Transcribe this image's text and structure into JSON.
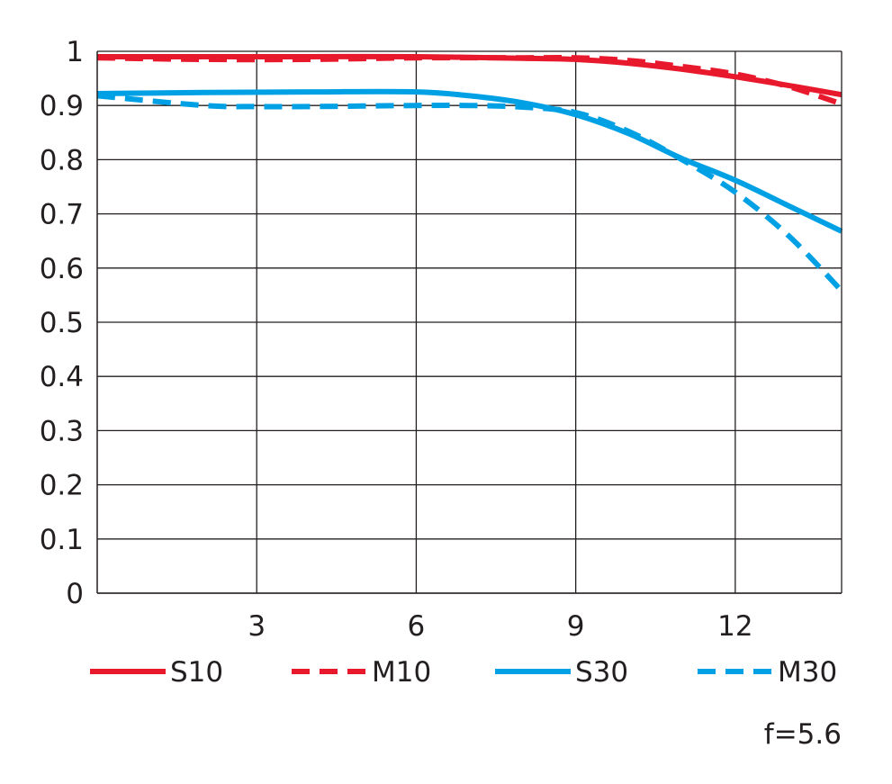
{
  "chart_data": {
    "type": "line",
    "xlim": [
      0,
      14
    ],
    "ylim": [
      0,
      1
    ],
    "x_ticks": [
      3,
      6,
      9,
      12
    ],
    "y_ticks": [
      0,
      0.1,
      0.2,
      0.3,
      0.4,
      0.5,
      0.6,
      0.7,
      0.8,
      0.9,
      1
    ],
    "x_tick_labels": [
      "3",
      "6",
      "9",
      "12"
    ],
    "y_tick_labels": [
      "0",
      "0.1",
      "0.2",
      "0.3",
      "0.4",
      "0.5",
      "0.6",
      "0.7",
      "0.8",
      "0.9",
      "1"
    ],
    "grid": true,
    "legend_position": "bottom",
    "series": [
      {
        "name": "S10",
        "color": "#e8192c",
        "style": "solid",
        "points": [
          [
            0,
            0.99
          ],
          [
            2,
            0.99
          ],
          [
            4,
            0.99
          ],
          [
            6,
            0.99
          ],
          [
            8,
            0.987
          ],
          [
            9,
            0.985
          ],
          [
            10,
            0.978
          ],
          [
            11,
            0.967
          ],
          [
            12,
            0.953
          ],
          [
            13,
            0.937
          ],
          [
            14,
            0.92
          ]
        ]
      },
      {
        "name": "M10",
        "color": "#e8192c",
        "style": "dashed",
        "points": [
          [
            0,
            0.988
          ],
          [
            2,
            0.985
          ],
          [
            4,
            0.985
          ],
          [
            6,
            0.988
          ],
          [
            8,
            0.988
          ],
          [
            9,
            0.988
          ],
          [
            10,
            0.983
          ],
          [
            11,
            0.972
          ],
          [
            12,
            0.958
          ],
          [
            13,
            0.935
          ],
          [
            14,
            0.903
          ]
        ]
      },
      {
        "name": "S30",
        "color": "#00a0e4",
        "style": "solid",
        "points": [
          [
            0,
            0.922
          ],
          [
            2,
            0.924
          ],
          [
            4,
            0.925
          ],
          [
            6,
            0.925
          ],
          [
            7,
            0.918
          ],
          [
            8,
            0.905
          ],
          [
            9,
            0.883
          ],
          [
            10,
            0.848
          ],
          [
            11,
            0.802
          ],
          [
            12,
            0.762
          ],
          [
            13,
            0.715
          ],
          [
            14,
            0.668
          ]
        ]
      },
      {
        "name": "M30",
        "color": "#00a0e4",
        "style": "dashed",
        "points": [
          [
            0,
            0.918
          ],
          [
            2,
            0.9
          ],
          [
            3,
            0.898
          ],
          [
            4,
            0.898
          ],
          [
            6,
            0.9
          ],
          [
            7,
            0.9
          ],
          [
            8,
            0.897
          ],
          [
            9,
            0.887
          ],
          [
            10,
            0.852
          ],
          [
            11,
            0.8
          ],
          [
            12,
            0.74
          ],
          [
            13,
            0.66
          ],
          [
            14,
            0.558
          ]
        ]
      }
    ],
    "annotation": "f=5.6"
  }
}
